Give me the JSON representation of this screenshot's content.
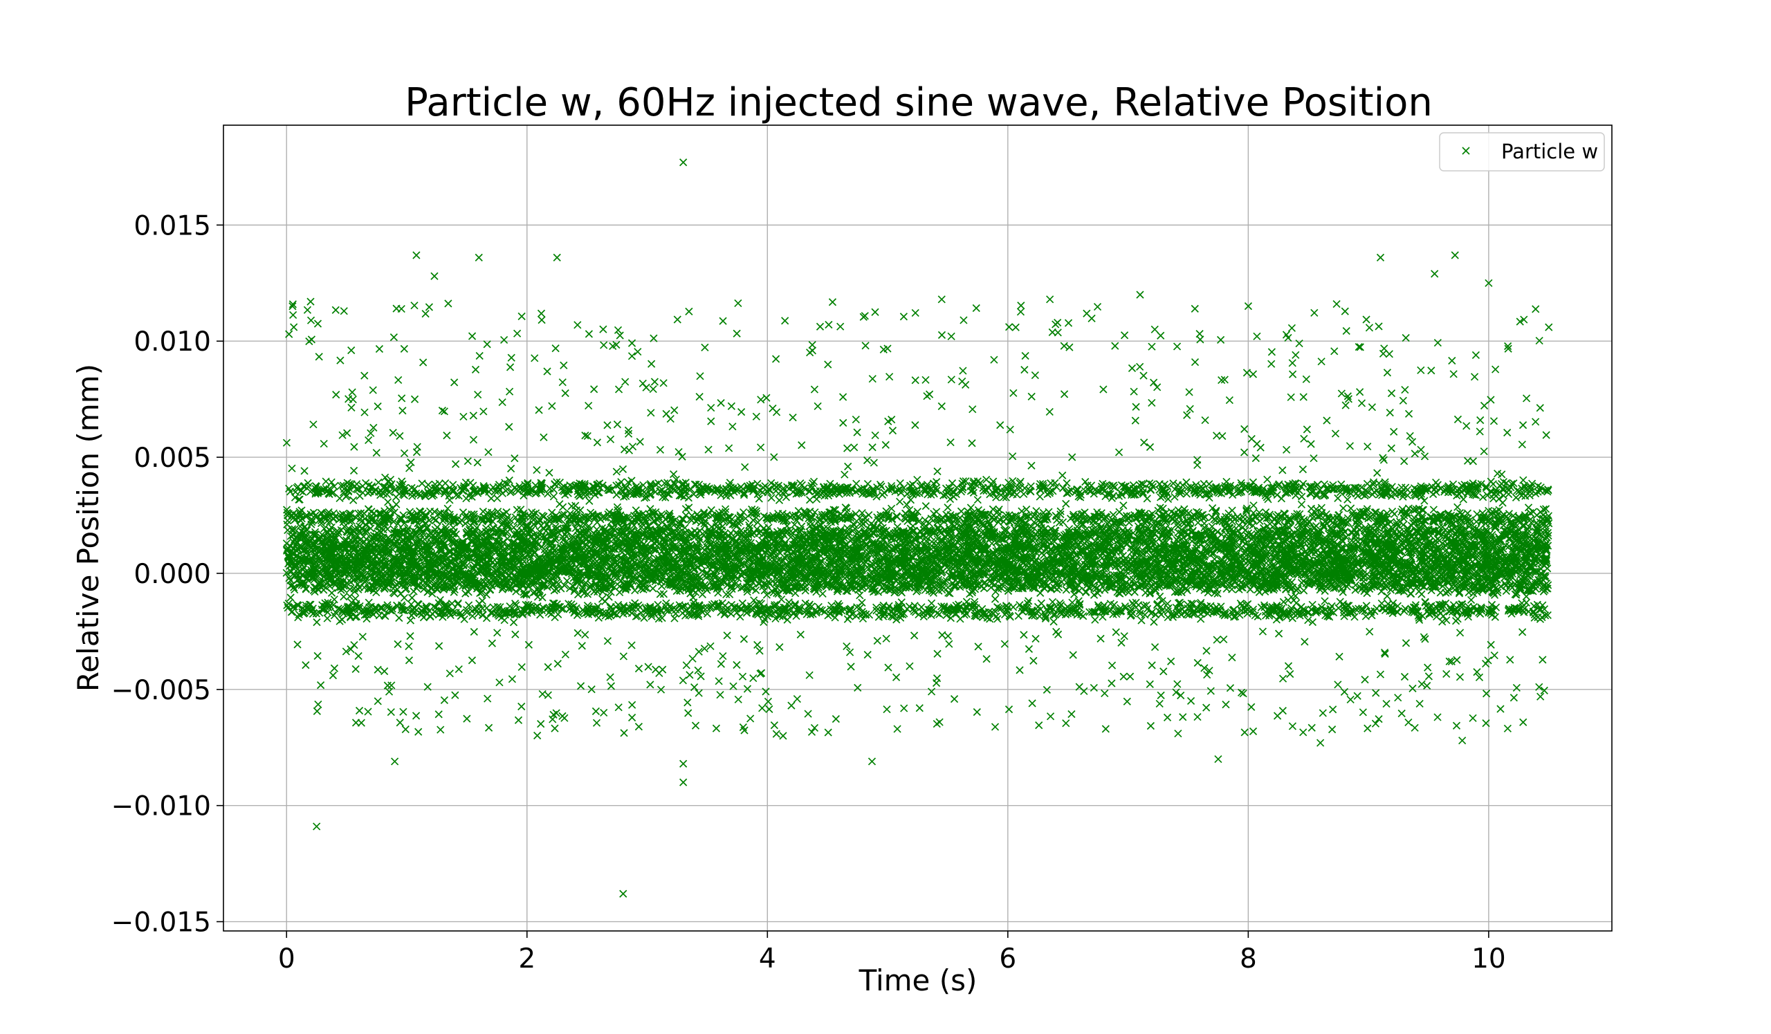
{
  "chart_data": {
    "type": "scatter",
    "title": "Particle w, 60Hz injected sine wave, Relative Position",
    "xlabel": "Time (s)",
    "ylabel": "Relative Position (mm)",
    "xlim": [
      -0.525,
      11.025
    ],
    "ylim": [
      -0.0154,
      0.0193
    ],
    "xticks": [
      0,
      2,
      4,
      6,
      8,
      10
    ],
    "xtick_labels": [
      "0",
      "2",
      "4",
      "6",
      "8",
      "10"
    ],
    "yticks": [
      -0.015,
      -0.01,
      -0.005,
      0.0,
      0.005,
      0.01,
      0.015
    ],
    "ytick_labels": [
      "−0.015",
      "−0.010",
      "−0.005",
      "0.000",
      "0.005",
      "0.010",
      "0.015"
    ],
    "grid": true,
    "legend_position": "top-right",
    "series": [
      {
        "name": "Particle w",
        "color": "#008000",
        "marker": "x",
        "x_range": [
          0.0,
          10.5
        ],
        "dense_band_range": [
          -0.0018,
          0.0038
        ],
        "sparse_spread_range": [
          -0.0075,
          0.0125
        ],
        "outliers": [
          {
            "x": 3.3,
            "y": 0.0177
          },
          {
            "x": 1.08,
            "y": 0.0137
          },
          {
            "x": 9.72,
            "y": 0.0137
          },
          {
            "x": 1.6,
            "y": 0.0136
          },
          {
            "x": 2.25,
            "y": 0.0136
          },
          {
            "x": 9.1,
            "y": 0.0136
          },
          {
            "x": 9.55,
            "y": 0.0129
          },
          {
            "x": 1.23,
            "y": 0.0128
          },
          {
            "x": 10.0,
            "y": 0.0125
          },
          {
            "x": 7.1,
            "y": 0.012
          },
          {
            "x": 0.2,
            "y": 0.0117
          },
          {
            "x": 6.35,
            "y": 0.0118
          },
          {
            "x": 5.45,
            "y": 0.0118
          },
          {
            "x": 10.5,
            "y": 0.0106
          },
          {
            "x": 0.02,
            "y": 0.0103
          },
          {
            "x": 0.25,
            "y": -0.0109
          },
          {
            "x": 2.8,
            "y": -0.0138
          },
          {
            "x": 3.3,
            "y": -0.009
          },
          {
            "x": 0.9,
            "y": -0.0081
          },
          {
            "x": 4.87,
            "y": -0.0081
          },
          {
            "x": 7.75,
            "y": -0.008
          },
          {
            "x": 3.3,
            "y": -0.0082
          },
          {
            "x": 8.6,
            "y": -0.0073
          },
          {
            "x": 9.78,
            "y": -0.0072
          }
        ]
      }
    ]
  }
}
